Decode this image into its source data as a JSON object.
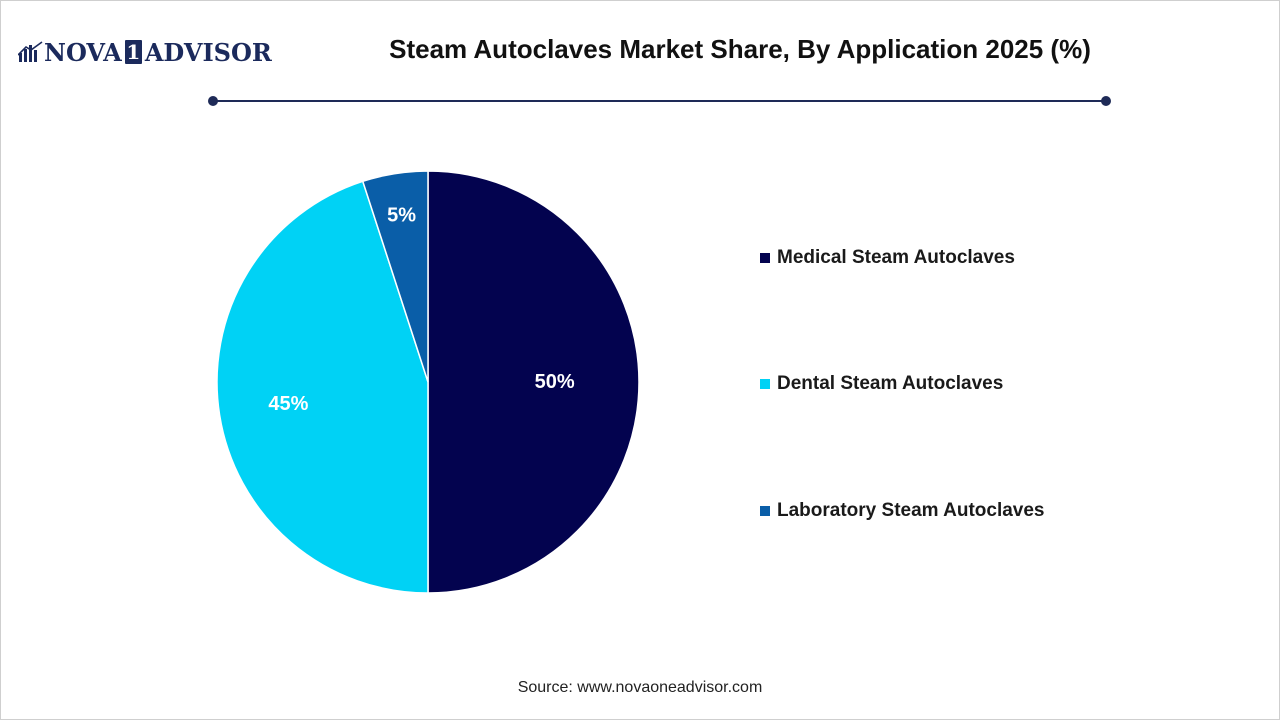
{
  "logo": {
    "name_left": "NOVA",
    "name_digit": "1",
    "name_right": "ADVISOR"
  },
  "title": "Steam Autoclaves Market Share, By Application 2025 (%)",
  "source": "Source: www.novaoneadvisor.com",
  "colors": {
    "accent": "#1e2a57",
    "medical": "#03034f",
    "dental": "#00d2f5",
    "laboratory": "#0a5ea8"
  },
  "chart_data": {
    "type": "pie",
    "title": "Steam Autoclaves Market Share, By Application 2025 (%)",
    "categories": [
      "Medical Steam Autoclaves",
      "Dental Steam Autoclaves",
      "Laboratory Steam Autoclaves"
    ],
    "values": [
      50,
      45,
      5
    ],
    "labels": [
      "50%",
      "45%",
      "5%"
    ],
    "colors": [
      "#03034f",
      "#00d2f5",
      "#0a5ea8"
    ],
    "start_angle": "12 o'clock",
    "direction": "clockwise",
    "legend_position": "right"
  }
}
